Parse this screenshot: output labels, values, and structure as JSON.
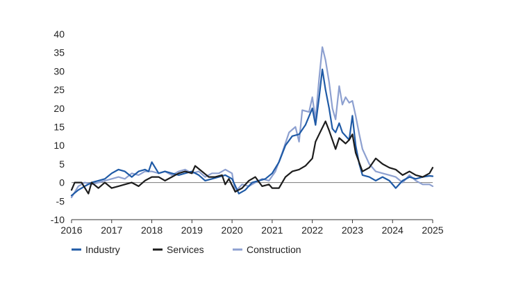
{
  "chart_data": {
    "type": "line",
    "title": "",
    "xlabel": "",
    "ylabel": "",
    "xlim": [
      2016,
      2025
    ],
    "ylim": [
      -10,
      40
    ],
    "xticks": [
      2016,
      2017,
      2018,
      2019,
      2020,
      2021,
      2022,
      2023,
      2024,
      2025
    ],
    "yticks": [
      -10,
      -5,
      0,
      5,
      10,
      15,
      20,
      25,
      30,
      35,
      40
    ],
    "grid": false,
    "zero_line": true,
    "legend": "bottom",
    "series": [
      {
        "name": "Industry",
        "color": "#1f5aa6",
        "points": [
          [
            2016.0,
            -3.5
          ],
          [
            2016.17,
            -2.0
          ],
          [
            2016.33,
            -1.0
          ],
          [
            2016.5,
            0.0
          ],
          [
            2016.67,
            0.5
          ],
          [
            2016.83,
            1.0
          ],
          [
            2017.0,
            2.5
          ],
          [
            2017.17,
            3.5
          ],
          [
            2017.33,
            3.0
          ],
          [
            2017.5,
            1.5
          ],
          [
            2017.67,
            3.0
          ],
          [
            2017.83,
            3.5
          ],
          [
            2017.92,
            3.0
          ],
          [
            2018.0,
            5.5
          ],
          [
            2018.17,
            2.5
          ],
          [
            2018.33,
            3.0
          ],
          [
            2018.5,
            2.5
          ],
          [
            2018.67,
            2.0
          ],
          [
            2018.83,
            2.5
          ],
          [
            2019.0,
            3.0
          ],
          [
            2019.17,
            2.0
          ],
          [
            2019.33,
            0.5
          ],
          [
            2019.5,
            1.0
          ],
          [
            2019.67,
            1.5
          ],
          [
            2019.83,
            2.0
          ],
          [
            2020.0,
            1.0
          ],
          [
            2020.17,
            -3.0
          ],
          [
            2020.33,
            -2.0
          ],
          [
            2020.5,
            0.0
          ],
          [
            2020.67,
            0.5
          ],
          [
            2020.83,
            1.0
          ],
          [
            2021.0,
            2.5
          ],
          [
            2021.17,
            5.5
          ],
          [
            2021.33,
            10.0
          ],
          [
            2021.5,
            12.5
          ],
          [
            2021.67,
            13.0
          ],
          [
            2021.83,
            15.5
          ],
          [
            2022.0,
            20.0
          ],
          [
            2022.08,
            15.5
          ],
          [
            2022.17,
            23.0
          ],
          [
            2022.25,
            30.5
          ],
          [
            2022.33,
            25.0
          ],
          [
            2022.42,
            20.0
          ],
          [
            2022.5,
            14.5
          ],
          [
            2022.58,
            13.5
          ],
          [
            2022.67,
            16.0
          ],
          [
            2022.75,
            13.5
          ],
          [
            2022.92,
            11.5
          ],
          [
            2023.0,
            18.0
          ],
          [
            2023.08,
            10.0
          ],
          [
            2023.17,
            5.0
          ],
          [
            2023.25,
            2.0
          ],
          [
            2023.42,
            1.5
          ],
          [
            2023.58,
            0.5
          ],
          [
            2023.75,
            1.5
          ],
          [
            2023.92,
            0.5
          ],
          [
            2024.08,
            -1.5
          ],
          [
            2024.25,
            0.5
          ],
          [
            2024.42,
            1.5
          ],
          [
            2024.58,
            1.0
          ],
          [
            2024.75,
            1.5
          ],
          [
            2024.92,
            1.8
          ],
          [
            2025.0,
            1.7
          ]
        ]
      },
      {
        "name": "Services",
        "color": "#1c1c1c",
        "points": [
          [
            2016.0,
            -2.0
          ],
          [
            2016.08,
            0.0
          ],
          [
            2016.25,
            0.0
          ],
          [
            2016.42,
            -3.0
          ],
          [
            2016.5,
            0.0
          ],
          [
            2016.67,
            -1.5
          ],
          [
            2016.83,
            0.0
          ],
          [
            2017.0,
            -1.5
          ],
          [
            2017.17,
            -1.0
          ],
          [
            2017.33,
            -0.5
          ],
          [
            2017.5,
            0.0
          ],
          [
            2017.67,
            -1.0
          ],
          [
            2017.83,
            0.5
          ],
          [
            2018.0,
            1.5
          ],
          [
            2018.17,
            1.5
          ],
          [
            2018.33,
            0.5
          ],
          [
            2018.5,
            1.5
          ],
          [
            2018.67,
            2.5
          ],
          [
            2018.83,
            3.0
          ],
          [
            2019.0,
            2.5
          ],
          [
            2019.08,
            4.5
          ],
          [
            2019.25,
            3.0
          ],
          [
            2019.42,
            1.5
          ],
          [
            2019.58,
            1.5
          ],
          [
            2019.75,
            2.0
          ],
          [
            2019.83,
            -0.5
          ],
          [
            2019.92,
            1.0
          ],
          [
            2020.08,
            -2.5
          ],
          [
            2020.25,
            -1.5
          ],
          [
            2020.42,
            0.5
          ],
          [
            2020.58,
            1.5
          ],
          [
            2020.75,
            -1.0
          ],
          [
            2020.92,
            -0.5
          ],
          [
            2021.0,
            -1.5
          ],
          [
            2021.17,
            -1.5
          ],
          [
            2021.33,
            1.5
          ],
          [
            2021.5,
            3.0
          ],
          [
            2021.67,
            3.5
          ],
          [
            2021.83,
            4.5
          ],
          [
            2022.0,
            6.5
          ],
          [
            2022.08,
            11.0
          ],
          [
            2022.17,
            13.0
          ],
          [
            2022.33,
            16.5
          ],
          [
            2022.42,
            14.0
          ],
          [
            2022.58,
            9.0
          ],
          [
            2022.67,
            12.0
          ],
          [
            2022.83,
            10.5
          ],
          [
            2022.92,
            11.5
          ],
          [
            2023.0,
            13.0
          ],
          [
            2023.08,
            8.0
          ],
          [
            2023.25,
            3.0
          ],
          [
            2023.42,
            4.0
          ],
          [
            2023.58,
            6.5
          ],
          [
            2023.75,
            5.0
          ],
          [
            2023.92,
            4.0
          ],
          [
            2024.08,
            3.5
          ],
          [
            2024.25,
            2.0
          ],
          [
            2024.42,
            3.0
          ],
          [
            2024.58,
            2.0
          ],
          [
            2024.75,
            1.5
          ],
          [
            2024.92,
            2.5
          ],
          [
            2025.0,
            4.0
          ]
        ]
      },
      {
        "name": "Construction",
        "color": "#8da0d0",
        "points": [
          [
            2016.0,
            -4.0
          ],
          [
            2016.17,
            -1.0
          ],
          [
            2016.33,
            0.0
          ],
          [
            2016.5,
            -0.5
          ],
          [
            2016.67,
            0.0
          ],
          [
            2016.83,
            0.5
          ],
          [
            2017.0,
            1.0
          ],
          [
            2017.17,
            1.5
          ],
          [
            2017.33,
            1.0
          ],
          [
            2017.5,
            2.5
          ],
          [
            2017.67,
            2.0
          ],
          [
            2017.83,
            3.0
          ],
          [
            2018.0,
            3.0
          ],
          [
            2018.17,
            2.5
          ],
          [
            2018.33,
            3.0
          ],
          [
            2018.5,
            2.0
          ],
          [
            2018.67,
            3.0
          ],
          [
            2018.83,
            3.5
          ],
          [
            2019.0,
            2.5
          ],
          [
            2019.17,
            3.0
          ],
          [
            2019.33,
            1.5
          ],
          [
            2019.5,
            2.5
          ],
          [
            2019.67,
            2.5
          ],
          [
            2019.83,
            3.5
          ],
          [
            2020.0,
            2.5
          ],
          [
            2020.08,
            -2.5
          ],
          [
            2020.25,
            -0.5
          ],
          [
            2020.42,
            -1.0
          ],
          [
            2020.58,
            0.0
          ],
          [
            2020.75,
            1.0
          ],
          [
            2020.92,
            0.5
          ],
          [
            2021.08,
            3.0
          ],
          [
            2021.25,
            8.0
          ],
          [
            2021.42,
            13.5
          ],
          [
            2021.58,
            15.0
          ],
          [
            2021.67,
            11.0
          ],
          [
            2021.75,
            19.5
          ],
          [
            2021.92,
            19.0
          ],
          [
            2022.0,
            23.0
          ],
          [
            2022.08,
            17.0
          ],
          [
            2022.17,
            28.0
          ],
          [
            2022.25,
            36.5
          ],
          [
            2022.33,
            33.0
          ],
          [
            2022.42,
            27.0
          ],
          [
            2022.5,
            20.0
          ],
          [
            2022.58,
            17.0
          ],
          [
            2022.67,
            26.0
          ],
          [
            2022.75,
            21.0
          ],
          [
            2022.83,
            23.0
          ],
          [
            2022.92,
            21.5
          ],
          [
            2023.0,
            22.0
          ],
          [
            2023.08,
            18.0
          ],
          [
            2023.17,
            13.0
          ],
          [
            2023.25,
            9.0
          ],
          [
            2023.42,
            5.0
          ],
          [
            2023.58,
            3.0
          ],
          [
            2023.75,
            2.5
          ],
          [
            2023.92,
            2.0
          ],
          [
            2024.08,
            1.5
          ],
          [
            2024.25,
            0.0
          ],
          [
            2024.42,
            2.0
          ],
          [
            2024.58,
            0.5
          ],
          [
            2024.75,
            -0.5
          ],
          [
            2024.92,
            -0.5
          ],
          [
            2025.0,
            -1.0
          ]
        ]
      }
    ]
  }
}
